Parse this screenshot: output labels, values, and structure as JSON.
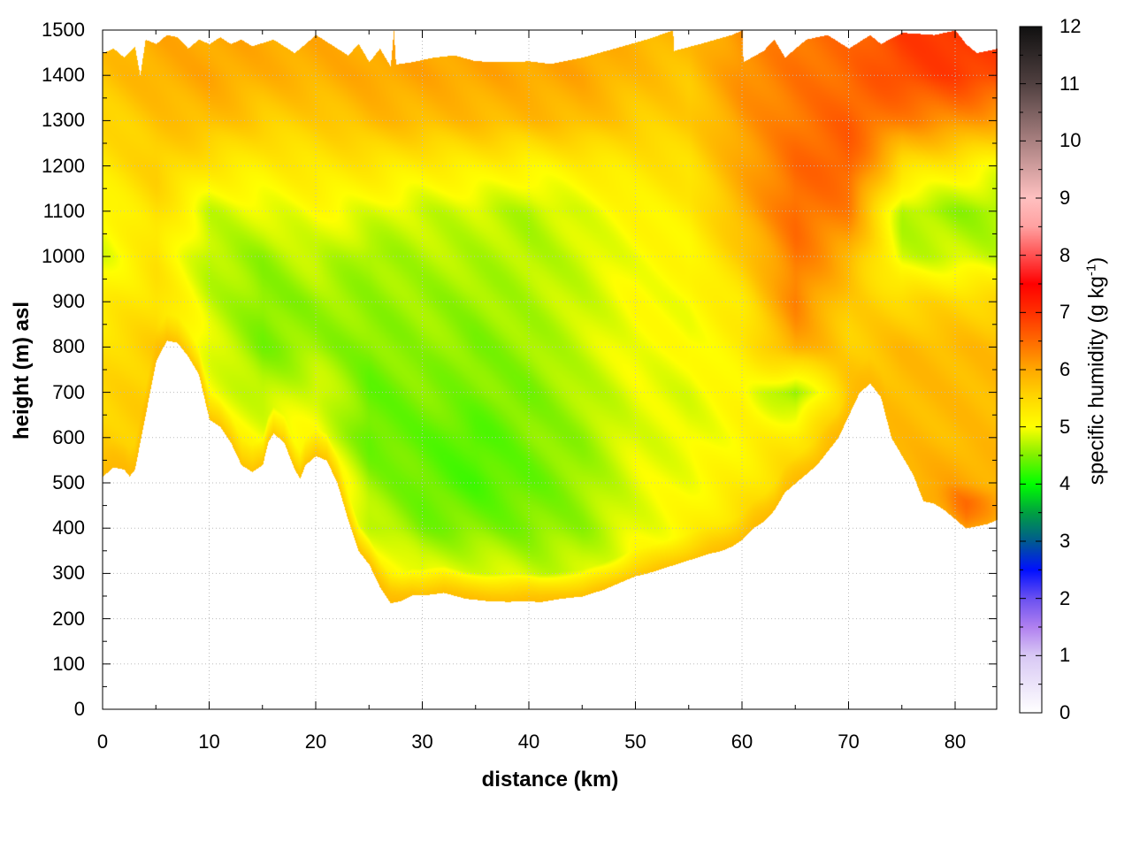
{
  "chart_data": {
    "type": "heatmap",
    "title": "",
    "xlabel": "distance (km)",
    "ylabel": "height (m) asl",
    "colorbar_label": "specific humidity (g kg",
    "colorbar_label_sup": "-1",
    "colorbar_label_end": ")",
    "xlim": [
      0,
      84
    ],
    "ylim": [
      0,
      1500
    ],
    "clim": [
      0,
      12
    ],
    "grid": true,
    "x_ticks": [
      "0",
      "10",
      "20",
      "30",
      "40",
      "50",
      "60",
      "70",
      "80"
    ],
    "y_ticks": [
      "0",
      "100",
      "200",
      "300",
      "400",
      "500",
      "600",
      "700",
      "800",
      "900",
      "1000",
      "1100",
      "1200",
      "1300",
      "1400",
      "1500"
    ],
    "colorbar_ticks": [
      "0",
      "1",
      "2",
      "3",
      "4",
      "5",
      "6",
      "7",
      "8",
      "9",
      "10",
      "11",
      "12"
    ],
    "colormap": [
      [
        0,
        "#ffffff"
      ],
      [
        1,
        "#d8c8f4"
      ],
      [
        1.5,
        "#b080f0"
      ],
      [
        2,
        "#6a50f0"
      ],
      [
        2.5,
        "#0010ff"
      ],
      [
        3,
        "#005a90"
      ],
      [
        3.5,
        "#00a040"
      ],
      [
        4,
        "#00ff00"
      ],
      [
        4.5,
        "#80f000"
      ],
      [
        5,
        "#ffff00"
      ],
      [
        5.5,
        "#ffd800"
      ],
      [
        6,
        "#ffa800"
      ],
      [
        6.5,
        "#ff6a00"
      ],
      [
        7,
        "#ff3000"
      ],
      [
        7.5,
        "#ff0000"
      ],
      [
        8,
        "#ff5050"
      ],
      [
        8.5,
        "#ffa0a0"
      ],
      [
        9,
        "#ffc0c0"
      ],
      [
        10,
        "#a88080"
      ],
      [
        11,
        "#504040"
      ],
      [
        12,
        "#101010"
      ]
    ],
    "grid_x_km": [
      0,
      5,
      10,
      15,
      20,
      25,
      30,
      35,
      40,
      45,
      50,
      55,
      60,
      65,
      70,
      75,
      80,
      84
    ],
    "grid_height_m": [
      1500,
      1400,
      1300,
      1200,
      1100,
      1000,
      900,
      800,
      700,
      600,
      500,
      400,
      300,
      200
    ],
    "values_g_per_kg": [
      [
        5.8,
        6.0,
        6.0,
        6.0,
        6.0,
        6.0,
        6.0,
        6.0,
        6.0,
        6.0,
        5.9,
        5.8,
        6.2,
        6.4,
        6.5,
        6.9,
        7.0,
        6.9
      ],
      [
        5.7,
        5.9,
        6.0,
        5.9,
        5.9,
        6.0,
        6.0,
        6.0,
        6.0,
        6.0,
        5.8,
        5.7,
        6.2,
        6.4,
        6.5,
        6.8,
        6.9,
        6.8
      ],
      [
        5.5,
        5.7,
        5.8,
        5.6,
        5.6,
        5.8,
        5.8,
        5.8,
        5.8,
        5.8,
        5.6,
        5.6,
        6.1,
        6.4,
        6.6,
        6.3,
        6.2,
        6.0
      ],
      [
        5.3,
        5.6,
        5.3,
        5.2,
        5.3,
        5.3,
        5.2,
        5.2,
        5.1,
        5.2,
        5.3,
        5.4,
        6.0,
        6.5,
        6.6,
        5.4,
        5.2,
        5.0
      ],
      [
        5.0,
        5.4,
        4.8,
        4.9,
        5.0,
        4.9,
        4.8,
        4.8,
        4.7,
        4.9,
        5.1,
        5.2,
        5.9,
        6.5,
        6.3,
        4.7,
        4.6,
        4.6
      ],
      [
        4.9,
        5.3,
        4.7,
        4.6,
        4.8,
        4.6,
        4.7,
        4.7,
        4.7,
        4.8,
        5.0,
        5.1,
        5.6,
        6.4,
        5.9,
        4.8,
        4.8,
        4.8
      ],
      [
        5.2,
        5.4,
        4.8,
        4.5,
        4.6,
        4.6,
        4.6,
        4.6,
        4.7,
        4.8,
        5.0,
        5.0,
        5.3,
        6.3,
        5.6,
        5.5,
        5.5,
        5.5
      ],
      [
        5.4,
        5.6,
        4.9,
        4.5,
        4.6,
        4.5,
        4.6,
        4.5,
        4.6,
        4.8,
        5.0,
        5.0,
        5.2,
        6.0,
        5.6,
        5.8,
        5.8,
        5.8
      ],
      [
        5.5,
        5.6,
        5.0,
        4.7,
        4.9,
        4.4,
        4.5,
        4.5,
        4.5,
        4.7,
        4.9,
        4.9,
        5.1,
        4.5,
        5.7,
        5.8,
        5.8,
        5.8
      ],
      [
        5.6,
        5.6,
        5.2,
        5.0,
        5.0,
        4.4,
        4.4,
        4.3,
        4.5,
        4.6,
        4.9,
        4.9,
        5.1,
        5.3,
        5.8,
        5.8,
        5.8,
        5.8
      ],
      [
        5.7,
        5.7,
        5.4,
        5.3,
        5.5,
        4.6,
        4.4,
        4.3,
        4.4,
        4.6,
        4.9,
        5.0,
        5.2,
        5.6,
        5.8,
        5.9,
        6.0,
        5.9
      ],
      [
        5.8,
        5.8,
        5.6,
        5.5,
        5.7,
        4.8,
        4.5,
        4.5,
        4.5,
        4.6,
        4.9,
        5.1,
        5.5,
        5.8,
        5.9,
        6.0,
        7.3,
        6.5
      ],
      [
        5.8,
        5.8,
        5.7,
        5.6,
        5.8,
        5.4,
        4.9,
        4.9,
        4.8,
        4.8,
        5.1,
        5.3,
        5.7,
        5.8,
        5.9,
        6.0,
        7.0,
        6.5
      ],
      [
        5.9,
        5.9,
        5.9,
        5.9,
        5.9,
        5.9,
        5.9,
        5.9,
        5.9,
        5.9,
        5.9,
        5.9,
        5.9,
        5.9,
        5.9,
        5.9,
        5.9,
        5.9
      ]
    ],
    "terrain_height_m": [
      [
        0,
        515
      ],
      [
        1,
        535
      ],
      [
        2,
        530
      ],
      [
        2.5,
        515
      ],
      [
        3,
        530
      ],
      [
        4,
        650
      ],
      [
        5,
        770
      ],
      [
        6,
        815
      ],
      [
        7,
        810
      ],
      [
        8,
        780
      ],
      [
        9,
        740
      ],
      [
        10,
        640
      ],
      [
        11,
        625
      ],
      [
        12,
        590
      ],
      [
        13,
        540
      ],
      [
        14,
        525
      ],
      [
        15,
        540
      ],
      [
        15.5,
        590
      ],
      [
        16,
        610
      ],
      [
        17,
        590
      ],
      [
        18,
        530
      ],
      [
        18.5,
        510
      ],
      [
        19,
        540
      ],
      [
        20,
        560
      ],
      [
        21,
        550
      ],
      [
        22,
        500
      ],
      [
        23,
        420
      ],
      [
        24,
        350
      ],
      [
        25,
        320
      ],
      [
        26,
        270
      ],
      [
        27,
        235
      ],
      [
        28,
        240
      ],
      [
        29,
        252
      ],
      [
        30,
        252
      ],
      [
        32,
        258
      ],
      [
        34,
        245
      ],
      [
        36,
        240
      ],
      [
        38,
        238
      ],
      [
        40,
        240
      ],
      [
        41,
        237
      ],
      [
        43,
        245
      ],
      [
        45,
        250
      ],
      [
        47,
        265
      ],
      [
        48,
        275
      ],
      [
        50,
        295
      ],
      [
        51,
        300
      ],
      [
        53,
        315
      ],
      [
        55,
        330
      ],
      [
        57,
        345
      ],
      [
        58,
        350
      ],
      [
        59,
        360
      ],
      [
        60,
        375
      ],
      [
        61,
        400
      ],
      [
        62,
        415
      ],
      [
        63,
        440
      ],
      [
        64,
        480
      ],
      [
        65,
        500
      ],
      [
        66,
        520
      ],
      [
        67,
        540
      ],
      [
        68,
        570
      ],
      [
        69,
        600
      ],
      [
        70,
        650
      ],
      [
        71,
        700
      ],
      [
        72,
        720
      ],
      [
        73,
        690
      ],
      [
        74,
        600
      ],
      [
        75,
        560
      ],
      [
        76,
        520
      ],
      [
        77,
        460
      ],
      [
        78,
        455
      ],
      [
        79,
        440
      ],
      [
        80,
        420
      ],
      [
        81,
        400
      ],
      [
        82,
        405
      ],
      [
        83,
        410
      ],
      [
        84,
        420
      ]
    ],
    "data_top_m": [
      [
        0,
        1450
      ],
      [
        1,
        1460
      ],
      [
        2,
        1440
      ],
      [
        3,
        1465
      ],
      [
        3.5,
        1400
      ],
      [
        4,
        1480
      ],
      [
        5,
        1470
      ],
      [
        6,
        1490
      ],
      [
        7,
        1485
      ],
      [
        8,
        1460
      ],
      [
        9,
        1480
      ],
      [
        10,
        1470
      ],
      [
        11,
        1485
      ],
      [
        12,
        1470
      ],
      [
        13,
        1480
      ],
      [
        14,
        1465
      ],
      [
        16,
        1480
      ],
      [
        18,
        1450
      ],
      [
        20,
        1490
      ],
      [
        22,
        1460
      ],
      [
        23,
        1445
      ],
      [
        24,
        1470
      ],
      [
        25,
        1430
      ],
      [
        26,
        1460
      ],
      [
        27,
        1420
      ],
      [
        27.3,
        1500
      ],
      [
        27.5,
        1425
      ],
      [
        29,
        1430
      ],
      [
        31,
        1440
      ],
      [
        33,
        1445
      ],
      [
        35,
        1432
      ],
      [
        38,
        1430
      ],
      [
        40,
        1432
      ],
      [
        42,
        1426
      ],
      [
        45,
        1440
      ],
      [
        48,
        1460
      ],
      [
        51,
        1480
      ],
      [
        53.5,
        1500
      ],
      [
        53.6,
        1455
      ],
      [
        56,
        1470
      ],
      [
        59,
        1490
      ],
      [
        60,
        1500
      ],
      [
        60.1,
        1430
      ],
      [
        62,
        1455
      ],
      [
        63,
        1480
      ],
      [
        64,
        1440
      ],
      [
        66,
        1480
      ],
      [
        68,
        1490
      ],
      [
        70,
        1460
      ],
      [
        72,
        1490
      ],
      [
        73,
        1470
      ],
      [
        75,
        1495
      ],
      [
        78,
        1490
      ],
      [
        80,
        1500
      ],
      [
        81,
        1470
      ],
      [
        82,
        1450
      ],
      [
        84,
        1460
      ]
    ]
  }
}
